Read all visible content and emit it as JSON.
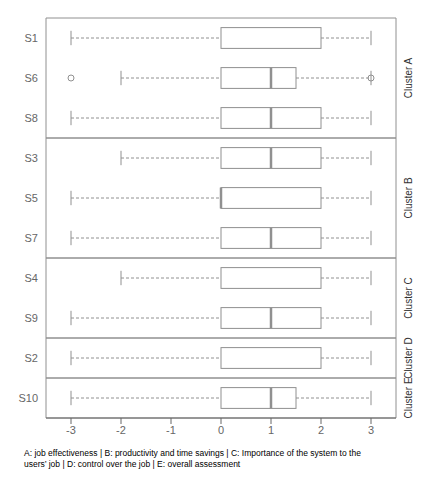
{
  "chart_data": {
    "type": "box",
    "orientation": "horizontal",
    "categories": [
      "S1",
      "S6",
      "S8",
      "S3",
      "S5",
      "S7",
      "S4",
      "S9",
      "S2",
      "S10"
    ],
    "whislo": [
      -3.0,
      -2.0,
      -3.0,
      -2.0,
      -3.0,
      -3.0,
      -2.0,
      -3.0,
      -3.0,
      -3.0
    ],
    "q1": [
      0.0,
      0.0,
      0.0,
      0.0,
      0.0,
      0.0,
      0.0,
      0.0,
      0.0,
      0.0
    ],
    "med": [
      null,
      1.0,
      1.0,
      1.0,
      0.0,
      1.0,
      null,
      1.0,
      null,
      1.0
    ],
    "q3": [
      2.0,
      1.5,
      2.0,
      2.0,
      2.0,
      2.0,
      2.0,
      2.0,
      2.0,
      1.5
    ],
    "whishi": [
      3.0,
      3.0,
      3.0,
      3.0,
      3.0,
      3.0,
      3.0,
      3.0,
      3.0,
      3.0
    ],
    "fliers": [
      [],
      [
        -3.0,
        3.0
      ],
      [],
      [],
      [],
      [],
      [],
      [],
      [],
      []
    ],
    "groups": [
      {
        "name": "Cluster A",
        "categories": [
          "S1",
          "S6",
          "S8"
        ]
      },
      {
        "name": "Cluster B",
        "categories": [
          "S3",
          "S5",
          "S7"
        ]
      },
      {
        "name": "Cluster C",
        "categories": [
          "S4",
          "S9"
        ]
      },
      {
        "name": "Cluster D",
        "categories": [
          "S2"
        ]
      },
      {
        "name": "Cluster E",
        "categories": [
          "S10"
        ]
      }
    ],
    "xlim": [
      -3.5,
      3.5
    ],
    "xticks": [
      -3,
      -2,
      -1,
      0,
      1,
      2,
      3
    ],
    "grid": false,
    "color": "#909090",
    "caption": [
      "A: job effectiveness | B: productivity and time savings | C: Importance of the system to the",
      "users’ job | D: control over the job | E: overall assessment"
    ]
  }
}
